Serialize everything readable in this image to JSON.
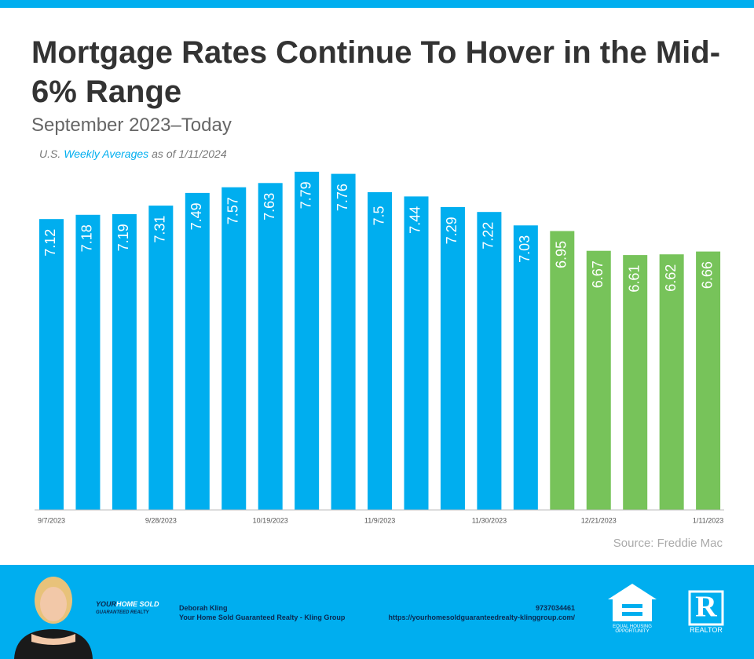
{
  "chart_data": {
    "type": "bar",
    "title": "Mortgage Rates Continue To Hover in the Mid-6% Range",
    "subtitle": "September 2023–Today",
    "note": [
      "U.S.",
      "Weekly Averages",
      "as of 1/11/2024"
    ],
    "source": "Source: Freddie Mac",
    "categories": [
      "9/7/2023",
      null,
      null,
      "9/28/2023",
      null,
      null,
      "10/19/2023",
      null,
      null,
      "11/9/2023",
      null,
      null,
      "11/30/2023",
      null,
      null,
      "12/21/2023",
      null,
      null,
      "1/11/2023"
    ],
    "values": [
      7.12,
      7.18,
      7.19,
      7.31,
      7.49,
      7.57,
      7.63,
      7.79,
      7.76,
      7.5,
      7.44,
      7.29,
      7.22,
      7.03,
      6.95,
      6.67,
      6.61,
      6.62,
      6.66
    ],
    "colors": [
      "#00aeef",
      "#00aeef",
      "#00aeef",
      "#00aeef",
      "#00aeef",
      "#00aeef",
      "#00aeef",
      "#00aeef",
      "#00aeef",
      "#00aeef",
      "#00aeef",
      "#00aeef",
      "#00aeef",
      "#00aeef",
      "#77c35a",
      "#77c35a",
      "#77c35a",
      "#77c35a",
      "#77c35a"
    ],
    "ylim": [
      3,
      8
    ]
  },
  "footer": {
    "logo": [
      "YOUR",
      "HOME SOLD",
      "GUARANTEED REALTY"
    ],
    "name": "Deborah Kling",
    "company": "Your Home Sold Guaranteed Realty - Kling Group",
    "phone": "9737034461",
    "url": "https://yourhomesoldguaranteedrealty-klinggroup.com/",
    "equal_housing": "EQUAL HOUSING OPPORTUNITY",
    "realtor": "REALTOR"
  }
}
